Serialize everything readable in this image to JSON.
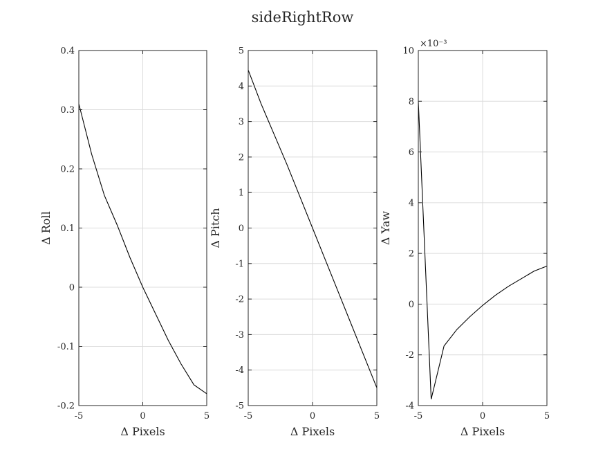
{
  "figure": {
    "title": "sideRightRow"
  },
  "chart_data": [
    {
      "type": "line",
      "xlabel": "Δ Pixels",
      "ylabel": "Δ Roll",
      "xlim": [
        -5,
        5
      ],
      "ylim": [
        -0.2,
        0.4
      ],
      "xticks": [
        -5,
        0,
        5
      ],
      "yticks": [
        -0.2,
        -0.1,
        0,
        0.1,
        0.2,
        0.3,
        0.4
      ],
      "xtick_labels": [
        "-5",
        "0",
        "5"
      ],
      "ytick_labels": [
        "-0.2",
        "-0.1",
        "0",
        "0.1",
        "0.2",
        "0.3",
        "0.4"
      ],
      "exponent_label": "",
      "grid": true,
      "series": [
        {
          "x": [
            -5,
            -4,
            -3,
            -2,
            -1,
            0,
            1,
            2,
            3,
            4,
            5
          ],
          "y": [
            0.31,
            0.225,
            0.155,
            0.105,
            0.05,
            0.0,
            -0.045,
            -0.09,
            -0.13,
            -0.165,
            -0.18
          ]
        }
      ]
    },
    {
      "type": "line",
      "xlabel": "Δ Pixels",
      "ylabel": "Δ Pitch",
      "xlim": [
        -5,
        5
      ],
      "ylim": [
        -5,
        5
      ],
      "xticks": [
        -5,
        0,
        5
      ],
      "yticks": [
        -5,
        -4,
        -3,
        -2,
        -1,
        0,
        1,
        2,
        3,
        4,
        5
      ],
      "xtick_labels": [
        "-5",
        "0",
        "5"
      ],
      "ytick_labels": [
        "-5",
        "-4",
        "-3",
        "-2",
        "-1",
        "0",
        "1",
        "2",
        "3",
        "4",
        "5"
      ],
      "exponent_label": "",
      "grid": true,
      "series": [
        {
          "x": [
            -5,
            -4,
            -3,
            -2,
            -1,
            0,
            1,
            2,
            3,
            4,
            5
          ],
          "y": [
            4.45,
            3.5,
            2.65,
            1.8,
            0.9,
            0.0,
            -0.9,
            -1.8,
            -2.7,
            -3.6,
            -4.5
          ]
        }
      ]
    },
    {
      "type": "line",
      "xlabel": "Δ Pixels",
      "ylabel": "Δ Yaw",
      "xlim": [
        -5,
        5
      ],
      "ylim": [
        -4,
        10
      ],
      "xticks": [
        -5,
        0,
        5
      ],
      "yticks": [
        -4,
        -2,
        0,
        2,
        4,
        6,
        8,
        10
      ],
      "xtick_labels": [
        "-5",
        "0",
        "5"
      ],
      "ytick_labels": [
        "-4",
        "-2",
        "0",
        "2",
        "4",
        "6",
        "8",
        "10"
      ],
      "exponent_label": "×10⁻³",
      "grid": true,
      "series": [
        {
          "x": [
            -5,
            -4,
            -3,
            -2,
            -1,
            0,
            1,
            2,
            3,
            4,
            5
          ],
          "y": [
            8.0,
            -3.75,
            -1.65,
            -1.0,
            -0.5,
            -0.05,
            0.35,
            0.7,
            1.0,
            1.3,
            1.5
          ]
        }
      ]
    }
  ]
}
